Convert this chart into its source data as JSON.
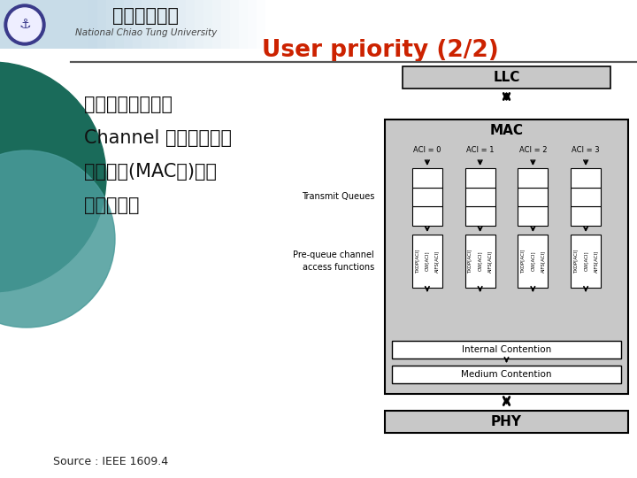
{
  "title": "User priority (2/2)",
  "title_color": "#CC2200",
  "llc_label": "LLC",
  "mac_label": "MAC",
  "aci_labels": [
    "ACI = 0",
    "ACI = 1",
    "ACI = 2",
    "ACI = 3"
  ],
  "transmit_queues_label": "Transmit Queues",
  "prequeue_label": "Pre-queue channel\naccess functions",
  "internal_contention": "Internal Contention",
  "medium_contention": "Medium Contention",
  "phy_label": "PHY",
  "source_label": "Source : IEEE 1609.4",
  "box_fill": "#C8C8C8",
  "white_fill": "#FFFFFF",
  "queue_texts": [
    "AIFS[ACI]",
    "CW[ACI]",
    "TXOP[ACI]"
  ],
  "header_bg_left": "#C8DCE8",
  "header_bg_right": "#FFFFFF",
  "slide_bg": "#F0F8FF",
  "univ_name_zh": "國立交通大學",
  "univ_name_en": "National Chiao Tung University",
  "circle1_color": "#1A6B5A",
  "circle2_color": "#4A9B9A",
  "sep_line_color": "#555555",
  "bullet_circle_color": "#2E7B7A"
}
